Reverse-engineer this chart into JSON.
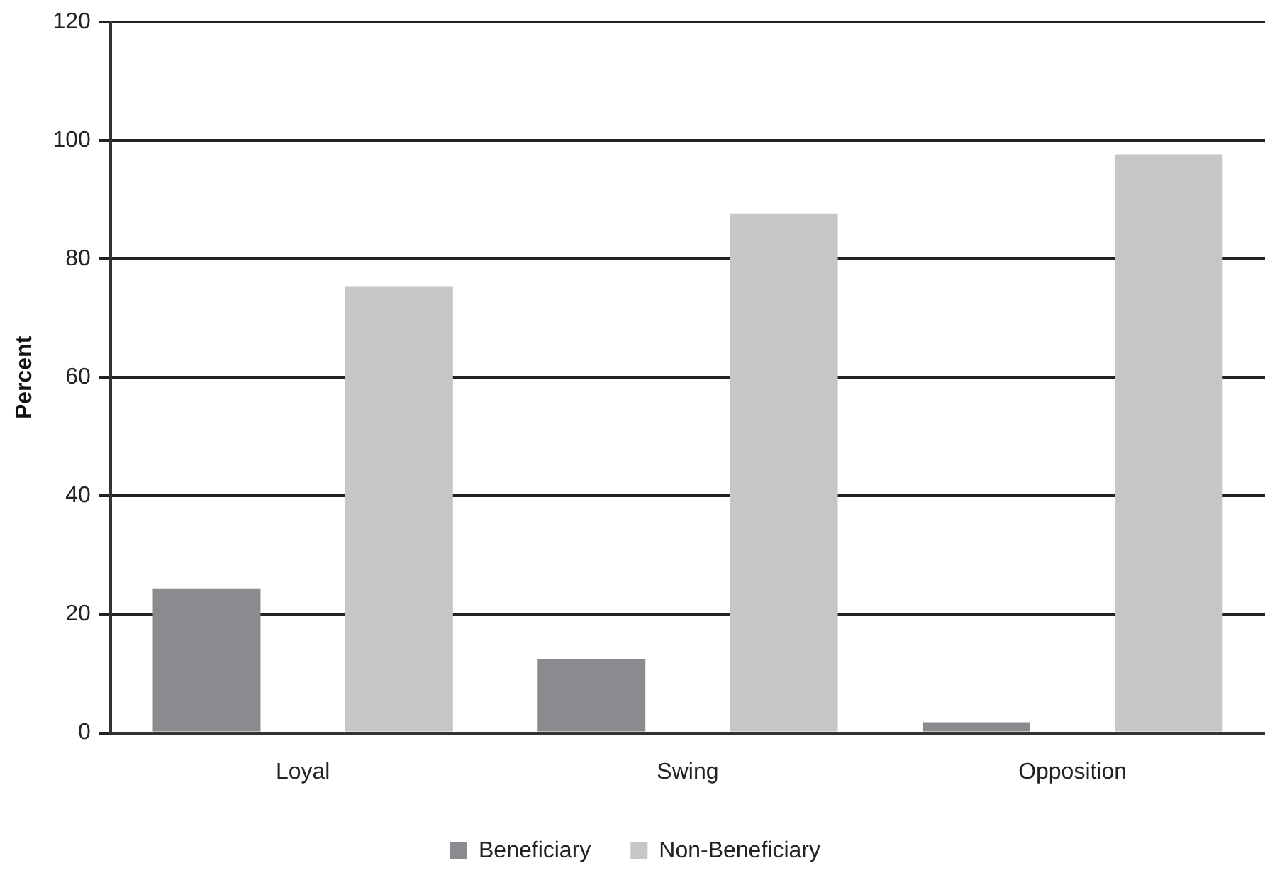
{
  "chart_data": {
    "type": "bar",
    "ylabel": "Percent",
    "categories": [
      "Loyal",
      "Swing",
      "Opposition"
    ],
    "series": [
      {
        "name": "Beneficiary",
        "color": "#8a8b8f",
        "values": [
          24.4,
          12.4,
          1.8
        ]
      },
      {
        "name": "Non-Beneficiary",
        "color": "#c5c6c8",
        "values": [
          75.3,
          87.6,
          97.7
        ]
      }
    ],
    "ylim": [
      0,
      120
    ],
    "yticks": [
      0,
      20,
      40,
      60,
      80,
      100,
      120
    ],
    "grid": "y",
    "legend": "bottom"
  }
}
